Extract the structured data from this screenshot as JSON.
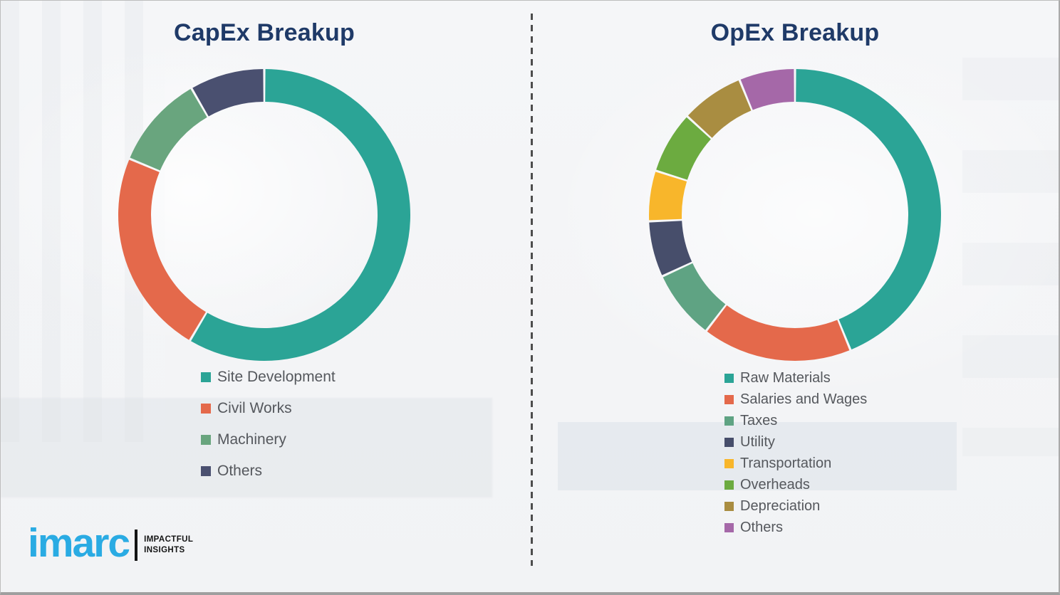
{
  "page": {
    "background_color": "#f3f4f6",
    "divider_color": "#4d4d4d",
    "title_color": "#1F3A68",
    "legend_text_color": "#55585d"
  },
  "chart_data": [
    {
      "type": "pie",
      "subtype": "donut",
      "title": "CapEx Breakup",
      "categories": [
        "Site Development",
        "Civil Works",
        "Machinery",
        "Others"
      ],
      "values": [
        58.5,
        22.8,
        10.4,
        8.3
      ],
      "values_are_percent_estimated_from_arc_angles": true,
      "colors": [
        "#2BA496",
        "#E4694B",
        "#69A57E",
        "#4A5070"
      ],
      "start_angle_deg": 0,
      "direction": "clockwise",
      "data_labels": false,
      "legend_position": "below-chart-left"
    },
    {
      "type": "pie",
      "subtype": "donut",
      "title": "OpEx Breakup",
      "categories": [
        "Raw Materials",
        "Salaries and Wages",
        "Taxes",
        "Utility",
        "Transportation",
        "Overheads",
        "Depreciation",
        "Others"
      ],
      "values": [
        43.8,
        16.6,
        7.7,
        6.2,
        5.6,
        6.9,
        7.0,
        6.2
      ],
      "values_are_percent_estimated_from_arc_angles": true,
      "colors": [
        "#2BA496",
        "#E4694B",
        "#5FA383",
        "#474E6B",
        "#F8B62B",
        "#6CAB40",
        "#A98D41",
        "#A568A8"
      ],
      "start_angle_deg": 0,
      "direction": "clockwise",
      "data_labels": false,
      "legend_position": "below-chart-left"
    }
  ],
  "logo": {
    "brand": "imarc",
    "tagline_line1": "IMPACTFUL",
    "tagline_line2": "INSIGHTS",
    "brand_color": "#2AABE3",
    "tagline_color": "#141414"
  }
}
